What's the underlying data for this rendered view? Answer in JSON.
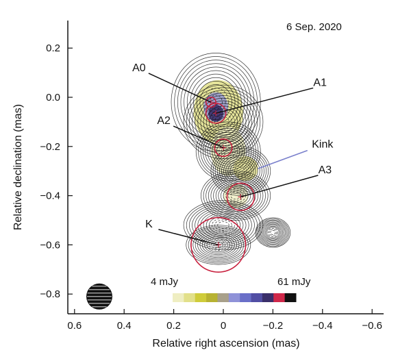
{
  "chart_data": {
    "type": "contour",
    "epoch_label": "6 Sep. 2020",
    "xlabel": "Relative right ascension (mas)",
    "ylabel": "Relative declination (mas)",
    "xlim": [
      0.6,
      -0.6
    ],
    "ylim": [
      -0.87,
      0.38
    ],
    "x_ticks": [
      0.6,
      0.4,
      0.2,
      0,
      -0.2,
      -0.4,
      -0.6
    ],
    "x_tick_labels": [
      "0.6",
      "0.4",
      "0.2",
      "0",
      "−0.2",
      "−0.4",
      "−0.6"
    ],
    "y_ticks": [
      0.2,
      0.0,
      -0.2,
      -0.4,
      -0.6,
      -0.8
    ],
    "y_tick_labels": [
      "0.2",
      "0.0",
      "−0.2",
      "−0.4",
      "−0.6",
      "−0.8"
    ],
    "components": [
      {
        "name": "A0",
        "x": 0.05,
        "y": -0.02,
        "diameter": 0.04,
        "label_x": 0.34,
        "label_y": 0.12
      },
      {
        "name": "A1",
        "x": 0.03,
        "y": -0.065,
        "diameter": 0.08,
        "label_x": -0.39,
        "label_y": 0.06
      },
      {
        "name": "A2",
        "x": 0.0,
        "y": -0.205,
        "diameter": 0.07,
        "label_x": 0.24,
        "label_y": -0.095
      },
      {
        "name": "A3",
        "x": -0.07,
        "y": -0.405,
        "diameter": 0.11,
        "label_x": -0.41,
        "label_y": -0.295
      },
      {
        "name": "K",
        "x": 0.02,
        "y": -0.6,
        "diameter": 0.22,
        "label_x": 0.3,
        "label_y": -0.515
      }
    ],
    "kink": {
      "name": "Kink",
      "x": -0.14,
      "y": -0.29,
      "label_x": -0.4,
      "label_y": -0.205
    },
    "beam": {
      "x": 0.5,
      "y": -0.81,
      "label": "beam"
    },
    "colorbar": {
      "min_label": "4 mJy",
      "max_label": "61 mJy",
      "colors": [
        "#efeec2",
        "#e2e08a",
        "#cfcc3a",
        "#b7b232",
        "#a8a08a",
        "#8f92d8",
        "#6a6fc8",
        "#514ea4",
        "#3a2f6a",
        "#d0284a",
        "#111111"
      ]
    }
  }
}
